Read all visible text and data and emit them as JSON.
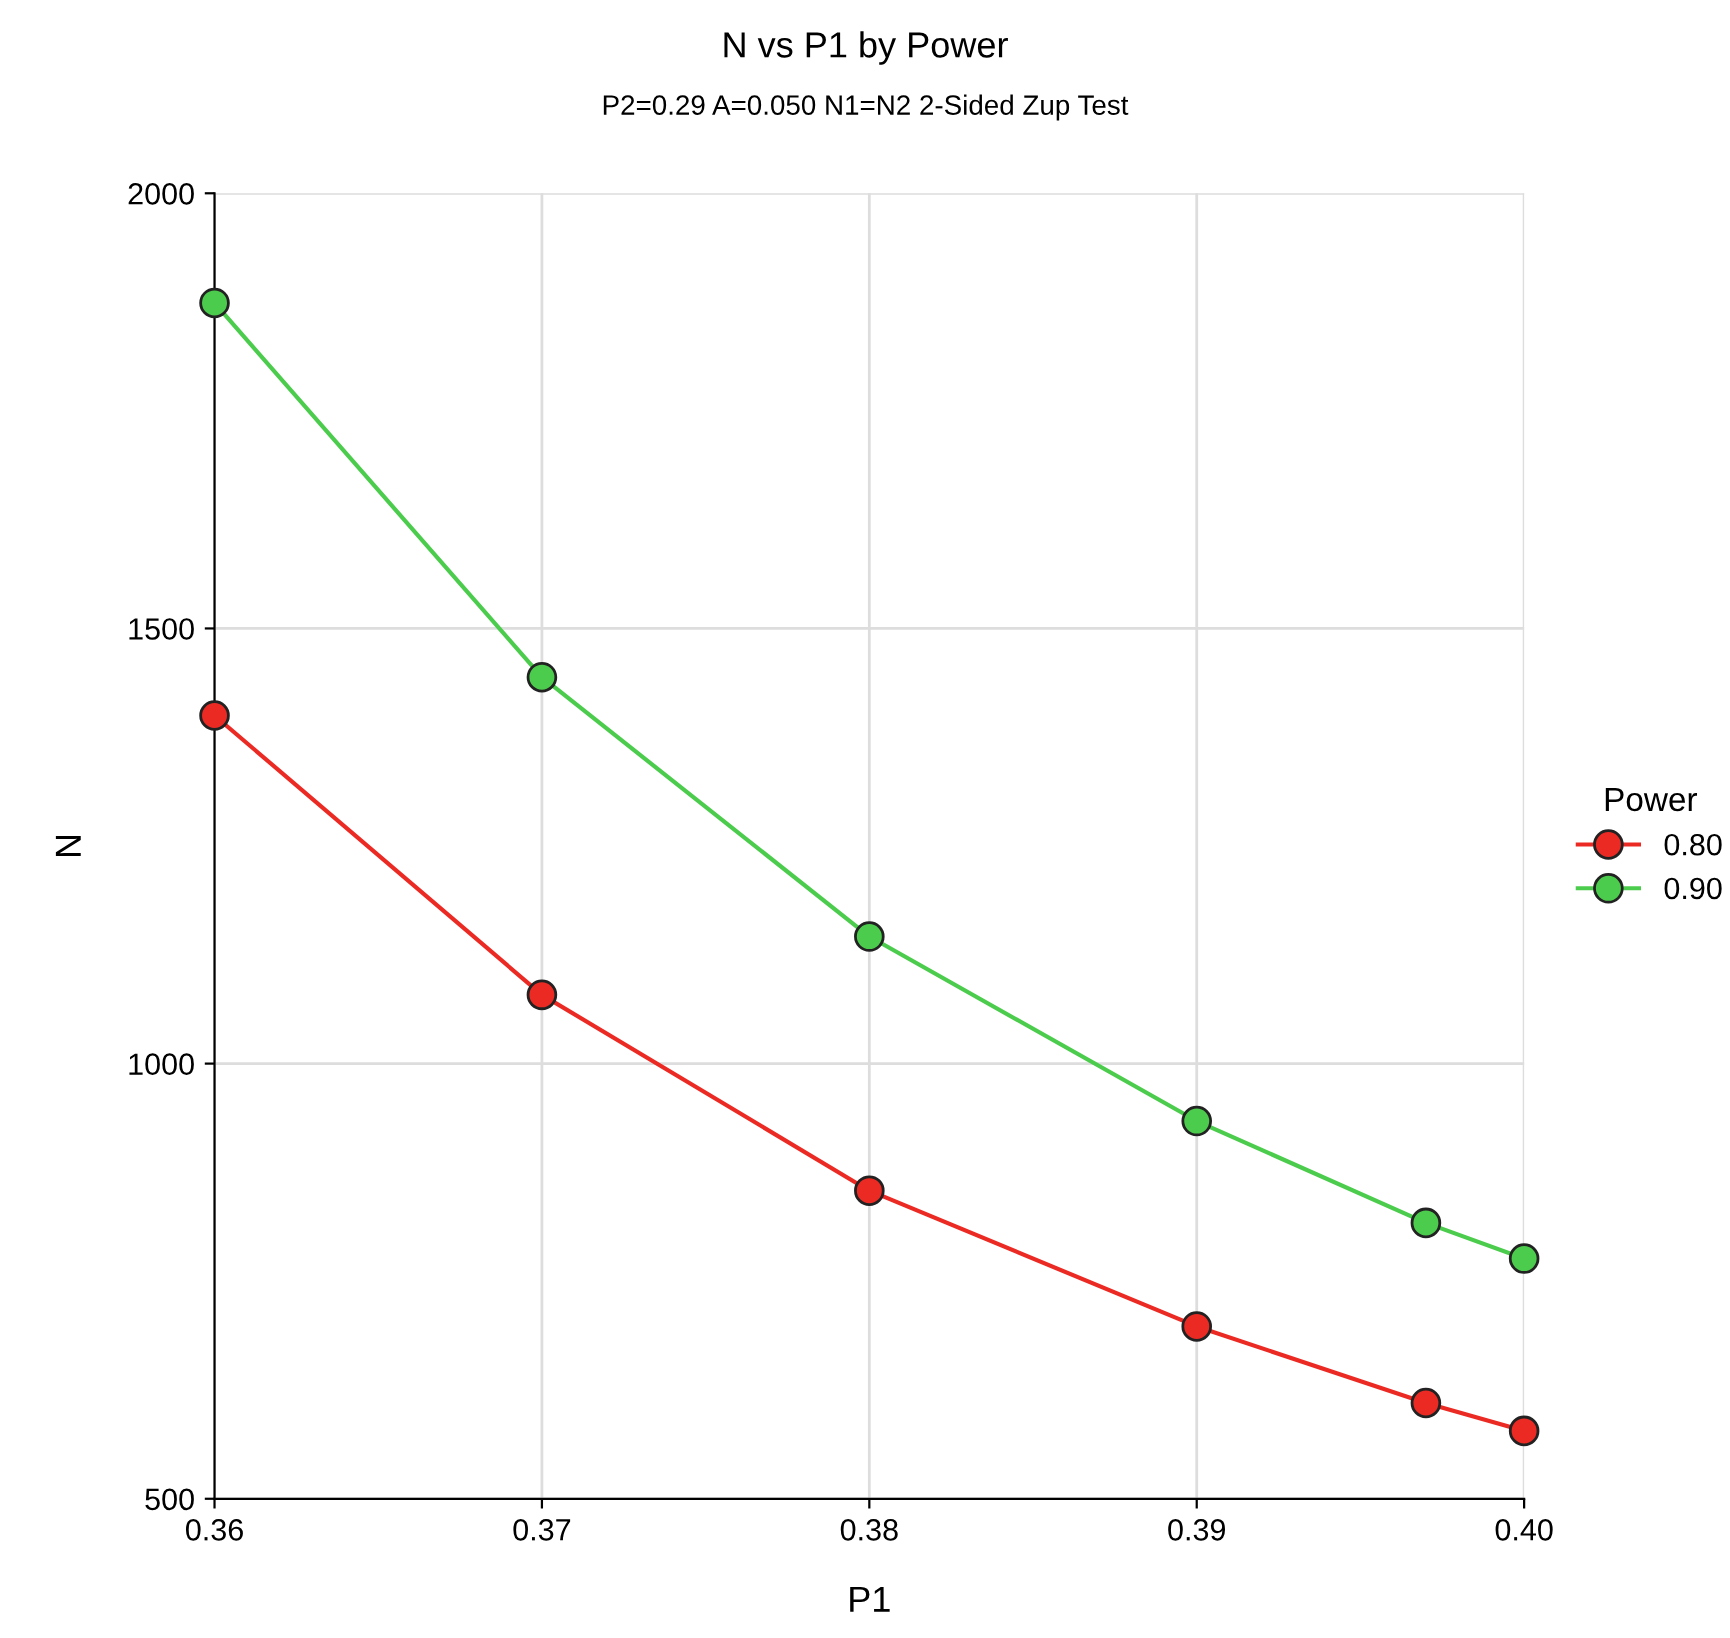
{
  "chart_data": {
    "type": "line",
    "title": "N vs P1 by Power",
    "subtitle": "P2=0.29 A=0.050 N1=N2 2-Sided Zup Test",
    "xlabel": "P1",
    "ylabel": "N",
    "legend_title": "Power",
    "x": [
      0.36,
      0.37,
      0.38,
      0.39,
      0.397,
      0.4
    ],
    "series": [
      {
        "name": "0.80",
        "color": "#ec2a24",
        "values": [
          1400,
          1079,
          854,
          698,
          610,
          578
        ]
      },
      {
        "name": "0.90",
        "color": "#4ccc4c",
        "values": [
          1874,
          1444,
          1146,
          934,
          817,
          776
        ]
      }
    ],
    "xlim": [
      0.36,
      0.4
    ],
    "xticks": [
      0.36,
      0.37,
      0.38,
      0.39,
      {
        "value": 0.4,
        "label": "0.40"
      }
    ],
    "ylim": [
      500,
      2000
    ],
    "yticks": [
      500,
      1000,
      1500,
      2000
    ],
    "grid": true,
    "legend": "right",
    "marker": "circle",
    "line_style": "solid"
  }
}
